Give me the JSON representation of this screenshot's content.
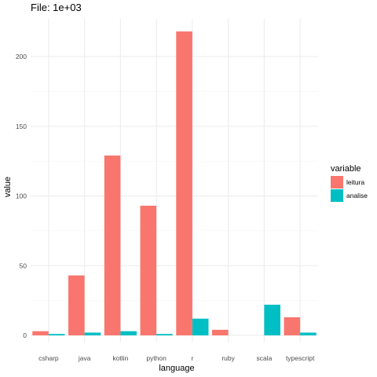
{
  "chart_data": {
    "type": "bar",
    "title": "File: 1e+03",
    "xlabel": "language",
    "ylabel": "value",
    "categories": [
      "csharp",
      "java",
      "kotlin",
      "python",
      "r",
      "ruby",
      "scala",
      "typescript"
    ],
    "series": [
      {
        "name": "leitura",
        "color": "#F8766D",
        "values": [
          3,
          43,
          129,
          93,
          218,
          4,
          0,
          13
        ]
      },
      {
        "name": "analise",
        "color": "#00BFC4",
        "values": [
          1,
          2,
          3,
          1,
          12,
          0,
          22,
          2
        ]
      }
    ],
    "ylim": [
      0,
      225
    ],
    "yticks": [
      0,
      50,
      100,
      150,
      200
    ],
    "grid": true,
    "legend": {
      "title": "variable",
      "position": "right"
    }
  }
}
